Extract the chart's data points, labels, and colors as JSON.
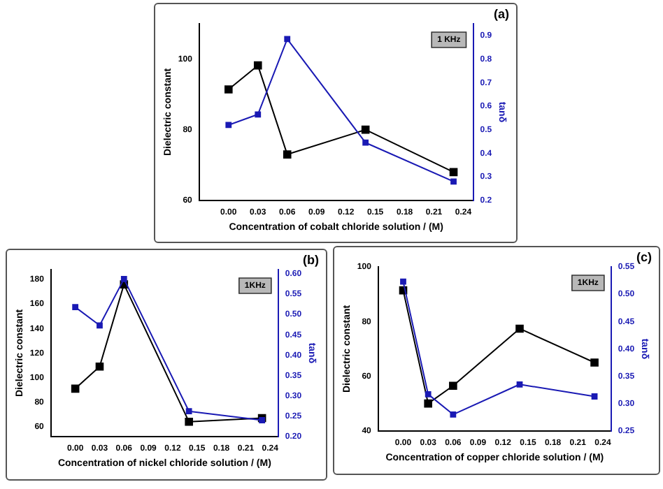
{
  "chart_data": [
    {
      "type": "line",
      "xlabel": "Concentration of cobalt chloride solution / (M)",
      "ylabel": "Dielectric constant",
      "y2label": "tanδ",
      "annotations": [
        "(a)",
        "1 KHz"
      ],
      "x": [
        0,
        0.03,
        0.06,
        0.14,
        0.23
      ],
      "xlim": [
        -0.03,
        0.25
      ],
      "xticks": [
        {
          "value": 0,
          "label": "0.00"
        },
        {
          "value": 0.03,
          "label": "0.03"
        },
        {
          "value": 0.06,
          "label": "0.06"
        },
        {
          "value": 0.09,
          "label": "0.09"
        },
        {
          "value": 0.12,
          "label": "0.12"
        },
        {
          "value": 0.15,
          "label": "0.15"
        },
        {
          "value": 0.18,
          "label": "0.18"
        },
        {
          "value": 0.21,
          "label": "0.21"
        },
        {
          "value": 0.24,
          "label": "0.24"
        }
      ],
      "ylim": [
        60,
        110
      ],
      "yticks": [
        60,
        80,
        100
      ],
      "y2lim": [
        0.2,
        0.95
      ],
      "y2ticks": [
        0.2,
        0.3,
        0.4,
        0.5,
        0.6,
        0.7,
        0.8,
        0.9
      ],
      "marker": "square",
      "legend": false,
      "grid": false,
      "series": [
        {
          "color": "#000000",
          "values": [
            91.4,
            98.2,
            73,
            80,
            68
          ]
        },
        {
          "color": "#1a1ab4",
          "axis": "y2",
          "values": [
            0.52,
            0.565,
            0.885,
            0.445,
            0.28
          ]
        }
      ]
    },
    {
      "type": "line",
      "xlabel": "Concentration of nickel chloride solution / (M)",
      "ylabel": "Dielectric constant",
      "y2label": "tanδ",
      "annotations": [
        "(b)",
        "1KHz"
      ],
      "x": [
        0,
        0.03,
        0.06,
        0.14,
        0.23
      ],
      "xlim": [
        -0.03,
        0.25
      ],
      "xticks": [
        {
          "value": 0,
          "label": "0.00"
        },
        {
          "value": 0.03,
          "label": "0.03"
        },
        {
          "value": 0.06,
          "label": "0.06"
        },
        {
          "value": 0.09,
          "label": "0.09"
        },
        {
          "value": 0.12,
          "label": "0.12"
        },
        {
          "value": 0.15,
          "label": "0.15"
        },
        {
          "value": 0.18,
          "label": "0.18"
        },
        {
          "value": 0.21,
          "label": "0.21"
        },
        {
          "value": 0.24,
          "label": "0.24"
        }
      ],
      "ylim": [
        52,
        188
      ],
      "yticks": [
        60,
        80,
        100,
        120,
        140,
        160,
        180
      ],
      "y2lim": [
        0.2,
        0.61
      ],
      "y2ticks": [
        {
          "value": 0.2,
          "label": "0.20"
        },
        {
          "value": 0.25,
          "label": "0.25"
        },
        {
          "value": 0.3,
          "label": "0.30"
        },
        {
          "value": 0.35,
          "label": "0.35"
        },
        {
          "value": 0.4,
          "label": "0.40"
        },
        {
          "value": 0.45,
          "label": "0.45"
        },
        {
          "value": 0.5,
          "label": "0.50"
        },
        {
          "value": 0.55,
          "label": "0.55"
        },
        {
          "value": 0.6,
          "label": "0.60"
        }
      ],
      "marker": "square",
      "legend": false,
      "grid": false,
      "series": [
        {
          "color": "#000000",
          "values": [
            91,
            109,
            176,
            64,
            67
          ]
        },
        {
          "color": "#1a1ab4",
          "axis": "y2",
          "values": [
            0.518,
            0.473,
            0.587,
            0.262,
            0.24
          ]
        }
      ]
    },
    {
      "type": "line",
      "xlabel": "Concentration of copper chloride solution / (M)",
      "ylabel": "Dielectric constant",
      "y2label": "tanδ",
      "annotations": [
        "(c)",
        "1KHz"
      ],
      "x": [
        0,
        0.03,
        0.06,
        0.14,
        0.23
      ],
      "xlim": [
        -0.03,
        0.25
      ],
      "xticks": [
        {
          "value": 0,
          "label": "0.00"
        },
        {
          "value": 0.03,
          "label": "0.03"
        },
        {
          "value": 0.06,
          "label": "0.06"
        },
        {
          "value": 0.09,
          "label": "0.09"
        },
        {
          "value": 0.12,
          "label": "0.12"
        },
        {
          "value": 0.15,
          "label": "0.15"
        },
        {
          "value": 0.18,
          "label": "0.18"
        },
        {
          "value": 0.21,
          "label": "0.21"
        },
        {
          "value": 0.24,
          "label": "0.24"
        }
      ],
      "ylim": [
        40,
        100
      ],
      "yticks": [
        40,
        60,
        80,
        100
      ],
      "y2lim": [
        0.25,
        0.55
      ],
      "y2ticks": [
        {
          "value": 0.25,
          "label": "0.25"
        },
        {
          "value": 0.3,
          "label": "0.30"
        },
        {
          "value": 0.35,
          "label": "0.35"
        },
        {
          "value": 0.4,
          "label": "0.40"
        },
        {
          "value": 0.45,
          "label": "0.45"
        },
        {
          "value": 0.5,
          "label": "0.50"
        },
        {
          "value": 0.55,
          "label": "0.55"
        }
      ],
      "marker": "square",
      "legend": false,
      "grid": false,
      "series": [
        {
          "color": "#000000",
          "values": [
            91.4,
            50,
            56.5,
            77.4,
            65
          ]
        },
        {
          "color": "#1a1ab4",
          "axis": "y2",
          "values": [
            0.523,
            0.317,
            0.28,
            0.335,
            0.313
          ]
        }
      ]
    }
  ]
}
